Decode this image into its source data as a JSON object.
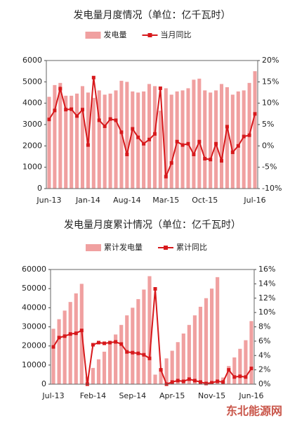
{
  "chart_data": [
    {
      "type": "combo",
      "title": "发电量月度情况（单位：亿千瓦时）",
      "categories": [
        "Jun-13",
        null,
        null,
        null,
        null,
        null,
        null,
        "Jan-14",
        null,
        null,
        null,
        null,
        null,
        null,
        "Aug-14",
        null,
        null,
        null,
        null,
        null,
        null,
        "Mar-15",
        null,
        null,
        null,
        null,
        null,
        null,
        "Oct-15",
        null,
        null,
        null,
        null,
        null,
        null,
        null,
        null,
        "Jul-16"
      ],
      "series": [
        {
          "name": "发电量",
          "type": "bar",
          "color": "#f0a0a0",
          "values": [
            4300,
            4850,
            4950,
            4350,
            4350,
            4450,
            4800,
            4500,
            4250,
            4600,
            4400,
            4450,
            4600,
            5050,
            5000,
            4550,
            4500,
            4550,
            4900,
            4800,
            3650,
            4700,
            4400,
            4550,
            4600,
            4700,
            5100,
            5150,
            4600,
            4500,
            4600,
            4900,
            4750,
            4400,
            4550,
            4600,
            4950,
            5500
          ]
        },
        {
          "name": "当月同比",
          "type": "line",
          "axis": "y2",
          "color": "#d7191c",
          "values": [
            6.2,
            8.3,
            13.4,
            8.5,
            8.6,
            7,
            8.5,
            0.2,
            16,
            6,
            4.6,
            6.3,
            6,
            3.2,
            -2,
            4,
            2,
            0.5,
            1.5,
            2.8,
            13.5,
            -7.2,
            -4,
            1,
            0.2,
            0.5,
            -2,
            1,
            -3,
            -3.2,
            0.5,
            -3.5,
            4.5,
            -1.5,
            0,
            2.2,
            2.5,
            7.5
          ]
        }
      ],
      "ylim": [
        0,
        6000
      ],
      "yticks": [
        0,
        1000,
        2000,
        3000,
        4000,
        5000,
        6000
      ],
      "y2lim": [
        -10,
        20
      ],
      "y2ticks": [
        {
          "value": -10,
          "label": "-10%"
        },
        {
          "value": -5,
          "label": "-5%"
        },
        {
          "value": 0,
          "label": "0%"
        },
        {
          "value": 5,
          "label": "5%"
        },
        {
          "value": 10,
          "label": "10%"
        },
        {
          "value": 15,
          "label": "15%"
        },
        {
          "value": 20,
          "label": "20%"
        }
      ],
      "legend": "top"
    },
    {
      "type": "combo",
      "title": "发电量月度累计情况（单位：亿千瓦时）",
      "categories": [
        "Jul-13",
        null,
        null,
        null,
        null,
        null,
        null,
        "Feb-14",
        null,
        null,
        null,
        null,
        null,
        null,
        "Sep-14",
        null,
        null,
        null,
        null,
        null,
        null,
        "Apr-15",
        null,
        null,
        null,
        null,
        null,
        null,
        "Nov-15",
        null,
        null,
        null,
        null,
        null,
        null,
        "Jun-16"
      ],
      "series": [
        {
          "name": "累计发电量",
          "type": "bar",
          "color": "#f0a0a0",
          "values": [
            29000,
            34000,
            38500,
            43000,
            47500,
            52500,
            4000,
            8500,
            13000,
            17000,
            21500,
            26000,
            31000,
            36000,
            40000,
            44500,
            49500,
            56500,
            5000,
            8500,
            13500,
            17500,
            22000,
            26500,
            31000,
            36000,
            40500,
            45000,
            50000,
            56000,
            3500,
            9500,
            14000,
            18500,
            23000,
            33000
          ]
        },
        {
          "name": "累计同比",
          "type": "line",
          "axis": "y2",
          "color": "#d7191c",
          "values": [
            5.2,
            6.5,
            6.7,
            7,
            7.1,
            7.5,
            0,
            5.5,
            5.8,
            5.7,
            5.8,
            5.9,
            5.6,
            4.5,
            4.4,
            4.3,
            4.1,
            3.6,
            13.3,
            2,
            0,
            0.3,
            0.5,
            0.4,
            0.7,
            0.5,
            0.3,
            0.1,
            0.2,
            0.4,
            0.3,
            2,
            1,
            1.1,
            1,
            2.2
          ]
        }
      ],
      "ylim": [
        0,
        60000
      ],
      "yticks": [
        0,
        10000,
        20000,
        30000,
        40000,
        50000,
        60000
      ],
      "y2lim": [
        0,
        16
      ],
      "y2ticks": [
        {
          "value": 0,
          "label": "0%"
        },
        {
          "value": 2,
          "label": "2%"
        },
        {
          "value": 4,
          "label": "4%"
        },
        {
          "value": 6,
          "label": "6%"
        },
        {
          "value": 8,
          "label": "8%"
        },
        {
          "value": 10,
          "label": "10%"
        },
        {
          "value": 12,
          "label": "12%"
        },
        {
          "value": 14,
          "label": "14%"
        },
        {
          "value": 16,
          "label": "16%"
        }
      ],
      "legend": "top"
    }
  ],
  "watermark": "东北能源网"
}
